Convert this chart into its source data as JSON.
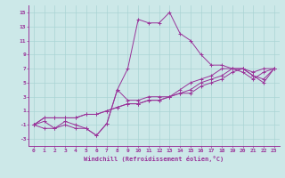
{
  "xlabel": "Windchill (Refroidissement éolien,°C)",
  "background_color": "#cce8e8",
  "grid_color": "#aad4d4",
  "line_color": "#993399",
  "xlim": [
    -0.5,
    23.5
  ],
  "ylim": [
    -4,
    16
  ],
  "xticks": [
    0,
    1,
    2,
    3,
    4,
    5,
    6,
    7,
    8,
    9,
    10,
    11,
    12,
    13,
    14,
    15,
    16,
    17,
    18,
    19,
    20,
    21,
    22,
    23
  ],
  "yticks": [
    -3,
    -1,
    1,
    3,
    5,
    7,
    9,
    11,
    13,
    15
  ],
  "line1_x": [
    0,
    1,
    2,
    3,
    4,
    5,
    6,
    7,
    8,
    9,
    10,
    11,
    12,
    13,
    14,
    15,
    16,
    17,
    18,
    19,
    20,
    21,
    22,
    23
  ],
  "line1_y": [
    -1,
    -1.5,
    -1.5,
    -0.5,
    -1,
    -1.5,
    -2.5,
    -0.8,
    4,
    7,
    14,
    13.5,
    13.5,
    15,
    12,
    11,
    9,
    7.5,
    7.5,
    7,
    7,
    6.5,
    7,
    7
  ],
  "line2_x": [
    0,
    1,
    2,
    3,
    4,
    5,
    6,
    7,
    8,
    9,
    10,
    11,
    12,
    13,
    14,
    15,
    16,
    17,
    18,
    19,
    20,
    21,
    22,
    23
  ],
  "line2_y": [
    -1,
    -0.5,
    -1.5,
    -1,
    -1.5,
    -1.5,
    -2.5,
    -0.8,
    4,
    2.5,
    2.5,
    3,
    3,
    3,
    4,
    5,
    5.5,
    6,
    7,
    7,
    6.5,
    5.5,
    6.5,
    7
  ],
  "line3_x": [
    0,
    1,
    2,
    3,
    4,
    5,
    6,
    7,
    8,
    9,
    10,
    11,
    12,
    13,
    14,
    15,
    16,
    17,
    18,
    19,
    20,
    21,
    22,
    23
  ],
  "line3_y": [
    -1,
    0,
    0,
    0,
    0,
    0.5,
    0.5,
    1,
    1.5,
    2,
    2,
    2.5,
    2.5,
    3,
    3.5,
    4,
    5,
    5.5,
    6,
    7,
    7,
    6,
    5.5,
    7
  ],
  "line4_x": [
    0,
    1,
    2,
    3,
    4,
    5,
    6,
    7,
    8,
    9,
    10,
    11,
    12,
    13,
    14,
    15,
    16,
    17,
    18,
    19,
    20,
    21,
    22,
    23
  ],
  "line4_y": [
    -1,
    0,
    0,
    0,
    0,
    0.5,
    0.5,
    1,
    1.5,
    2,
    2,
    2.5,
    2.5,
    3,
    3.5,
    3.5,
    4.5,
    5,
    5.5,
    6.5,
    7,
    6,
    5,
    7
  ]
}
